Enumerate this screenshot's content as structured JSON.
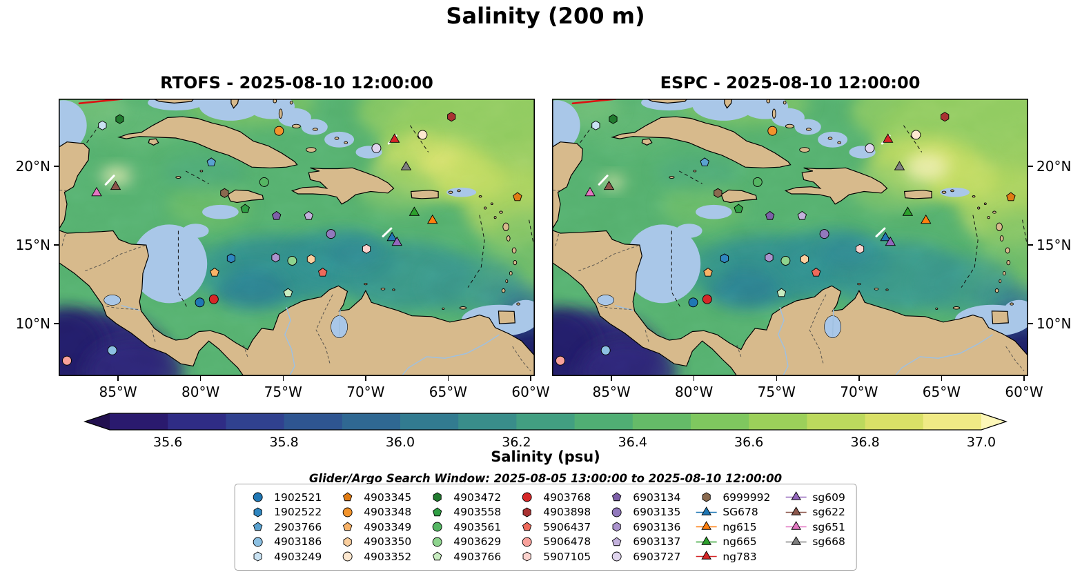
{
  "figure_title": "Salinity (200 m)",
  "panels": [
    {
      "variant": "rtofs",
      "title": "RTOFS - 2025-08-10 12:00:00",
      "y_labels_side": "left"
    },
    {
      "variant": "espc",
      "title": "ESPC - 2025-08-10 12:00:00",
      "y_labels_side": "right"
    }
  ],
  "axes": {
    "x_ticks": [
      {
        "label": "85°W",
        "lon": -85
      },
      {
        "label": "80°W",
        "lon": -80
      },
      {
        "label": "75°W",
        "lon": -75
      },
      {
        "label": "70°W",
        "lon": -70
      },
      {
        "label": "65°W",
        "lon": -65
      },
      {
        "label": "60°W",
        "lon": -60
      }
    ],
    "y_ticks": [
      {
        "label": "20°N",
        "lat": 20
      },
      {
        "label": "15°N",
        "lat": 15
      },
      {
        "label": "10°N",
        "lat": 10
      }
    ]
  },
  "colorbar": {
    "label": "Salinity (psu)",
    "vmin": 35.5,
    "vmax": 37.0,
    "ticks": [
      {
        "label": "35.6",
        "value": 35.6
      },
      {
        "label": "35.8",
        "value": 35.8
      },
      {
        "label": "36.0",
        "value": 36.0
      },
      {
        "label": "36.2",
        "value": 36.2
      },
      {
        "label": "36.4",
        "value": 36.4
      },
      {
        "label": "36.6",
        "value": 36.6
      },
      {
        "label": "36.8",
        "value": 36.8
      },
      {
        "label": "37.0",
        "value": 37.0
      }
    ],
    "segment_colors": [
      "#2a1a6e",
      "#2f2c85",
      "#30418f",
      "#2e5591",
      "#2f6892",
      "#327b90",
      "#398d8a",
      "#429f81",
      "#50ae74",
      "#65bb68",
      "#7fc75f",
      "#9cd05a",
      "#bcd95d",
      "#d9e067",
      "#f0ea85"
    ],
    "under_color": "#22104f",
    "over_color": "#fdf7b8"
  },
  "search_window_text": "Glider/Argo Search Window: 2025-08-05 13:00:00 to 2025-08-10 12:00:00",
  "legend_columns": [
    [
      {
        "label": "1902521",
        "shape": "circle",
        "color": "#2077b4"
      },
      {
        "label": "1902522",
        "shape": "hexagon",
        "color": "#2f86c0"
      },
      {
        "label": "2903766",
        "shape": "pentagon",
        "color": "#5aa2d0"
      },
      {
        "label": "4903186",
        "shape": "circle",
        "color": "#8cc0e2"
      },
      {
        "label": "4903249",
        "shape": "hexagon",
        "color": "#c9e2f2"
      }
    ],
    [
      {
        "label": "4903345",
        "shape": "pentagon",
        "color": "#e07b13"
      },
      {
        "label": "4903348",
        "shape": "circle",
        "color": "#f3942c"
      },
      {
        "label": "4903349",
        "shape": "pentagon",
        "color": "#f8b267"
      },
      {
        "label": "4903350",
        "shape": "hexagon",
        "color": "#fbcf9e"
      },
      {
        "label": "4903352",
        "shape": "circle",
        "color": "#fde8d0"
      }
    ],
    [
      {
        "label": "4903472",
        "shape": "hexagon",
        "color": "#217a2f"
      },
      {
        "label": "4903558",
        "shape": "pentagon",
        "color": "#2f9e43"
      },
      {
        "label": "4903561",
        "shape": "circle",
        "color": "#55b663"
      },
      {
        "label": "4903629",
        "shape": "circle",
        "color": "#8ed48e"
      },
      {
        "label": "4903766",
        "shape": "pentagon",
        "color": "#c8ecc0"
      }
    ],
    [
      {
        "label": "4903768",
        "shape": "circle",
        "color": "#d62728"
      },
      {
        "label": "4903898",
        "shape": "hexagon",
        "color": "#a93232"
      },
      {
        "label": "5906437",
        "shape": "pentagon",
        "color": "#ee6a5b"
      },
      {
        "label": "5906478",
        "shape": "circle",
        "color": "#f8a19b"
      },
      {
        "label": "5907105",
        "shape": "hexagon",
        "color": "#fbd2cd"
      }
    ],
    [
      {
        "label": "6903134",
        "shape": "pentagon",
        "color": "#7d5fa8"
      },
      {
        "label": "6903135",
        "shape": "circle",
        "color": "#9279bd"
      },
      {
        "label": "6903136",
        "shape": "hexagon",
        "color": "#ab93cd"
      },
      {
        "label": "6903137",
        "shape": "pentagon",
        "color": "#c3b1dc"
      },
      {
        "label": "6903727",
        "shape": "circle",
        "color": "#e0d5ee"
      }
    ],
    [
      {
        "label": "6999992",
        "shape": "hexagon",
        "color": "#8a6a4f"
      },
      {
        "label": "SG678",
        "shape": "triangle",
        "color": "#1f77b4",
        "line": true
      },
      {
        "label": "ng615",
        "shape": "triangle",
        "color": "#ff7f0e",
        "line": true
      },
      {
        "label": "ng665",
        "shape": "triangle",
        "color": "#2ca02c",
        "line": true
      },
      {
        "label": "ng783",
        "shape": "triangle",
        "color": "#d62728",
        "line": true
      }
    ],
    [
      {
        "label": "sg609",
        "shape": "triangle",
        "color": "#9467bd",
        "line": true
      },
      {
        "label": "sg622",
        "shape": "triangle",
        "color": "#8c564b",
        "line": true
      },
      {
        "label": "sg651",
        "shape": "triangle",
        "color": "#e377c2",
        "line": true
      },
      {
        "label": "sg668",
        "shape": "triangle",
        "color": "#7f7f7f",
        "line": true
      }
    ]
  ],
  "chart_data": {
    "type": "map-contourf",
    "variable": "Salinity",
    "units": "psu",
    "depth_m": 200,
    "models": [
      "RTOFS",
      "ESPC"
    ],
    "valid_time": "2025-08-10 12:00:00",
    "search_window": {
      "start": "2025-08-05 13:00:00",
      "end": "2025-08-10 12:00:00"
    },
    "extent": {
      "lon_min": -88.6,
      "lon_max": -59.75,
      "lat_min": 6.67,
      "lat_max": 24.3
    },
    "colormap_range": [
      35.5,
      37.0
    ],
    "markers": [
      {
        "id": "1902521",
        "shape": "circle",
        "color": "#2077b4",
        "lon": -80.05,
        "lat": 11.35
      },
      {
        "id": "1902522",
        "shape": "hexagon",
        "color": "#2f86c0",
        "lon": -78.15,
        "lat": 14.15
      },
      {
        "id": "2903766",
        "shape": "pentagon",
        "color": "#5aa2d0",
        "lon": -79.35,
        "lat": 20.25
      },
      {
        "id": "4903186",
        "shape": "circle",
        "color": "#8cc0e2",
        "lon": -85.35,
        "lat": 8.3
      },
      {
        "id": "4903249",
        "shape": "hexagon",
        "color": "#c9e2f2",
        "lon": -85.95,
        "lat": 22.6
      },
      {
        "id": "4903345",
        "shape": "pentagon",
        "color": "#e07b13",
        "lon": -60.8,
        "lat": 18.05
      },
      {
        "id": "4903348",
        "shape": "circle",
        "color": "#f3942c",
        "lon": -75.25,
        "lat": 22.25
      },
      {
        "id": "4903349",
        "shape": "pentagon",
        "color": "#f8b267",
        "lon": -79.15,
        "lat": 13.25
      },
      {
        "id": "4903350",
        "shape": "hexagon",
        "color": "#fbcf9e",
        "lon": -73.3,
        "lat": 14.1
      },
      {
        "id": "4903352",
        "shape": "circle",
        "color": "#fde8d0",
        "lon": -66.55,
        "lat": 22.0
      },
      {
        "id": "4903472",
        "shape": "hexagon",
        "color": "#217a2f",
        "lon": -84.9,
        "lat": 23.0
      },
      {
        "id": "4903558",
        "shape": "pentagon",
        "color": "#2f9e43",
        "lon": -77.3,
        "lat": 17.3
      },
      {
        "id": "4903561",
        "shape": "circle",
        "color": "#55b663",
        "lon": -76.15,
        "lat": 19.0
      },
      {
        "id": "4903629",
        "shape": "circle",
        "color": "#8ed48e",
        "lon": -74.45,
        "lat": 14.0
      },
      {
        "id": "4903766",
        "shape": "pentagon",
        "color": "#c8ecc0",
        "lon": -74.7,
        "lat": 11.95
      },
      {
        "id": "4903768",
        "shape": "circle",
        "color": "#d62728",
        "lon": -79.2,
        "lat": 11.55
      },
      {
        "id": "4903898",
        "shape": "hexagon",
        "color": "#a93232",
        "lon": -64.8,
        "lat": 23.15
      },
      {
        "id": "5906437",
        "shape": "pentagon",
        "color": "#ee6a5b",
        "lon": -72.6,
        "lat": 13.25
      },
      {
        "id": "5906478",
        "shape": "circle",
        "color": "#f8a19b",
        "lon": -88.1,
        "lat": 7.65
      },
      {
        "id": "5907105",
        "shape": "hexagon",
        "color": "#fbd2cd",
        "lon": -69.95,
        "lat": 14.75
      },
      {
        "id": "6903134",
        "shape": "pentagon",
        "color": "#7d5fa8",
        "lon": -75.4,
        "lat": 16.85
      },
      {
        "id": "6903135",
        "shape": "circle",
        "color": "#9279bd",
        "lon": -72.1,
        "lat": 15.7
      },
      {
        "id": "6903136",
        "shape": "hexagon",
        "color": "#ab93cd",
        "lon": -75.45,
        "lat": 14.2
      },
      {
        "id": "6903137",
        "shape": "pentagon",
        "color": "#c3b1dc",
        "lon": -73.45,
        "lat": 16.85
      },
      {
        "id": "6903727",
        "shape": "circle",
        "color": "#e0d5ee",
        "lon": -69.35,
        "lat": 21.15
      },
      {
        "id": "6999992",
        "shape": "hexagon",
        "color": "#8a6a4f",
        "lon": -78.55,
        "lat": 18.3
      },
      {
        "id": "SG678",
        "shape": "triangle",
        "color": "#1f77b4",
        "lon": -68.4,
        "lat": 15.45
      },
      {
        "id": "ng615",
        "shape": "triangle",
        "color": "#ff7f0e",
        "lon": -65.95,
        "lat": 16.55
      },
      {
        "id": "ng665",
        "shape": "triangle",
        "color": "#2ca02c",
        "lon": -67.05,
        "lat": 17.05
      },
      {
        "id": "ng783",
        "shape": "triangle",
        "color": "#d62728",
        "lon": -68.25,
        "lat": 21.7
      },
      {
        "id": "sg609",
        "shape": "triangle",
        "color": "#9467bd",
        "lon": -68.1,
        "lat": 15.15
      },
      {
        "id": "sg622",
        "shape": "triangle",
        "color": "#8c564b",
        "lon": -85.15,
        "lat": 18.7
      },
      {
        "id": "sg651",
        "shape": "triangle",
        "color": "#e377c2",
        "lon": -86.3,
        "lat": 18.3
      },
      {
        "id": "sg668",
        "shape": "triangle",
        "color": "#7f7f7f",
        "lon": -67.55,
        "lat": 19.95
      }
    ],
    "tracks": [
      {
        "name": "red-track",
        "color": "#dd1111",
        "width": 2.6,
        "points": [
          [
            -87.35,
            24.0
          ],
          [
            -84.75,
            24.28
          ]
        ]
      },
      {
        "name": "glider-track-west",
        "color": "#ffffff",
        "width": 3,
        "points": [
          [
            -85.75,
            18.85
          ],
          [
            -85.25,
            19.4
          ]
        ]
      },
      {
        "name": "glider-track-ng783",
        "color": "#ffffff",
        "width": 3,
        "points": [
          [
            -68.6,
            21.45
          ],
          [
            -68.15,
            21.95
          ]
        ]
      },
      {
        "name": "glider-track-sg678",
        "color": "#ffffff",
        "width": 3,
        "points": [
          [
            -68.95,
            15.55
          ],
          [
            -68.45,
            16.05
          ]
        ]
      }
    ]
  }
}
